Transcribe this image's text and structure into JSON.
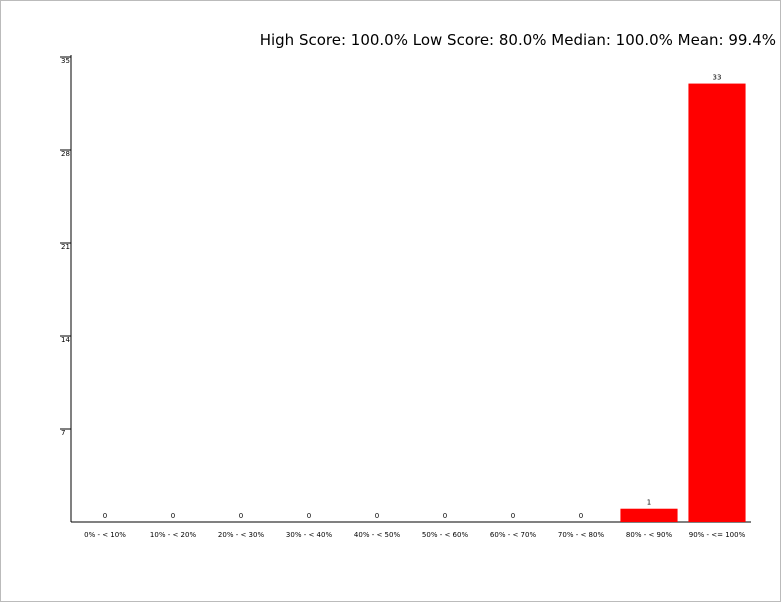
{
  "chart_data": {
    "type": "bar",
    "title": "High Score: 100.0%  Low Score: 80.0%  Median: 100.0%  Mean: 99.4%",
    "categories": [
      "0% - < 10%",
      "10% - < 20%",
      "20% - < 30%",
      "30% - < 40%",
      "40% - < 50%",
      "50% - < 60%",
      "60% - < 70%",
      "70% - < 80%",
      "80% - < 90%",
      "90% - <= 100%"
    ],
    "values": [
      0,
      0,
      0,
      0,
      0,
      0,
      0,
      0,
      1,
      33
    ],
    "color": "#ff0000",
    "ylim": [
      0,
      35
    ],
    "yticks": [
      7,
      14,
      21,
      28,
      35
    ],
    "grid": false
  }
}
